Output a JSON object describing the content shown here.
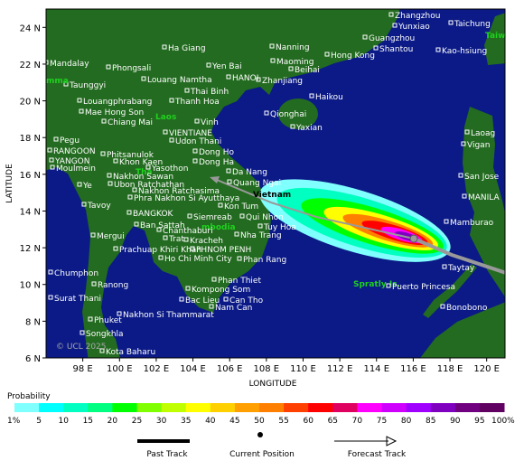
{
  "map": {
    "xlim": [
      96,
      121
    ],
    "ylim": [
      6,
      25
    ],
    "xticks": [
      {
        "value": 98,
        "label": "98 E"
      },
      {
        "value": 100,
        "label": "100 E"
      },
      {
        "value": 102,
        "label": "102 E"
      },
      {
        "value": 104,
        "label": "104 E"
      },
      {
        "value": 106,
        "label": "106 E"
      },
      {
        "value": 108,
        "label": "108 E"
      },
      {
        "value": 110,
        "label": "110 E"
      },
      {
        "value": 112,
        "label": "112 E"
      },
      {
        "value": 114,
        "label": "114 E"
      },
      {
        "value": 116,
        "label": "116 E"
      },
      {
        "value": 118,
        "label": "118 E"
      },
      {
        "value": 120,
        "label": "120 E"
      }
    ],
    "yticks": [
      {
        "value": 6,
        "label": "6 N"
      },
      {
        "value": 8,
        "label": "8 N"
      },
      {
        "value": 10,
        "label": "10 N"
      },
      {
        "value": 12,
        "label": "12 N"
      },
      {
        "value": 14,
        "label": "14 N"
      },
      {
        "value": 16,
        "label": "16 N"
      },
      {
        "value": 18,
        "label": "18 N"
      },
      {
        "value": 20,
        "label": "20 N"
      },
      {
        "value": 22,
        "label": "22 N"
      },
      {
        "value": 24,
        "label": "24 N"
      }
    ],
    "xlabel": "LONGITUDE",
    "ylabel": "LATITUDE",
    "copyright": "© UCL 2025",
    "places": [
      "Zhangzhou",
      "Yunxiao",
      "Taichung",
      "Taiw",
      "Nanning",
      "Guangzhou",
      "Shantou",
      "Ha Giang",
      "Hong Kong",
      "Kao-hsiung",
      "Mandalay",
      "Phongsali",
      "Yen Bai",
      "Maoming",
      "Beihai",
      "Louang Namtha",
      "HANOI",
      "Zhanjiang",
      "Taunggyi",
      "mma",
      "Thai Binh",
      "Haikou",
      "Louangphrabang",
      "Thanh Hoa",
      "Mae Hong Son",
      "Laos",
      "Qionghai",
      "Chiang Mai",
      "Vinh",
      "Yaxian",
      "VIENTIANE",
      "Laoag",
      "Udon Thani",
      "Pegu",
      "Vigan",
      "RANGOON",
      "Dong Ho",
      "Phitsanulok",
      "YANGON",
      "Khon Kaen",
      "Dong Ha",
      "Moulmein",
      "Yasothon",
      "Da Nang",
      "Tha",
      "Nakhon Sawan",
      "Quang Ngai",
      "San Jose",
      "Ubon Ratchathan",
      "Ye",
      "Nakhon Ratchasima",
      "Vietnam",
      "MANILA",
      "Phra Nakhon Si Ayutthaya",
      "Kon Tum",
      "Tavoy",
      "BANGKOK",
      "Siemreab",
      "Qui Nhon",
      "Mamburao",
      "Ban Sattah",
      "Tuy Hoa",
      "mbodia",
      "Chanthaburi",
      "Nha Trang",
      "Mergui",
      "Trat",
      "Kracheh",
      "Prachuap Khiri Khan",
      "PHNOM PENH",
      "Ho Chi Minh City",
      "Phan Rang",
      "Taytay",
      "Chumphon",
      "Phan Thiet",
      "Spratly Is.",
      "Puerto Princesa",
      "Ranong",
      "Kompong Som",
      "Surat Thani",
      "Bac Lieu",
      "Can Tho",
      "Nam Can",
      "Bonobono",
      "Nakhon Si Thammarat",
      "Phuket",
      "Songkhla",
      "Kota Baharu"
    ]
  },
  "colorbar": {
    "title": "Probability",
    "ticks": [
      {
        "value": 1,
        "label": "1%"
      },
      5,
      10,
      15,
      20,
      25,
      30,
      35,
      40,
      45,
      50,
      55,
      60,
      65,
      70,
      75,
      80,
      85,
      90,
      95,
      {
        "value": 100,
        "label": "100%"
      }
    ],
    "colors": [
      "#80ffff",
      "#00ffff",
      "#00ffc0",
      "#00ff80",
      "#00ff00",
      "#80ff00",
      "#c0ff00",
      "#ffff00",
      "#ffd000",
      "#ffa000",
      "#ff8000",
      "#ff4000",
      "#ff0000",
      "#e00060",
      "#ff00ff",
      "#d000ff",
      "#a000ff",
      "#8000c0",
      "#700080",
      "#600060"
    ]
  },
  "legend": [
    "Past Track",
    "Current Position",
    "Forecast Track"
  ]
}
